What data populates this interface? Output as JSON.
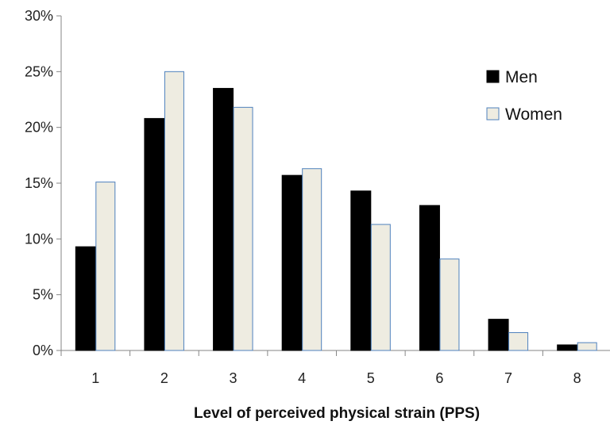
{
  "chart_data": {
    "type": "bar",
    "title": "",
    "xlabel": "Level of perceived physical strain (PPS)",
    "ylabel": "",
    "categories": [
      "1",
      "2",
      "3",
      "4",
      "5",
      "6",
      "7",
      "8"
    ],
    "series": [
      {
        "name": "Men",
        "values": [
          9.3,
          20.8,
          23.5,
          15.7,
          14.3,
          13.0,
          2.8,
          0.5
        ],
        "fill": "#000000",
        "stroke": "#000000"
      },
      {
        "name": "Women",
        "values": [
          15.1,
          25.0,
          21.8,
          16.3,
          11.3,
          8.2,
          1.6,
          0.7
        ],
        "fill": "#eeece1",
        "stroke": "#4f81bd"
      }
    ],
    "ylim": [
      0,
      30
    ],
    "yticks": [
      0,
      5,
      10,
      15,
      20,
      25,
      30
    ],
    "ytick_labels": [
      "0%",
      "5%",
      "10%",
      "15%",
      "20%",
      "25%",
      "30%"
    ],
    "grid": false,
    "legend_position": "right"
  }
}
